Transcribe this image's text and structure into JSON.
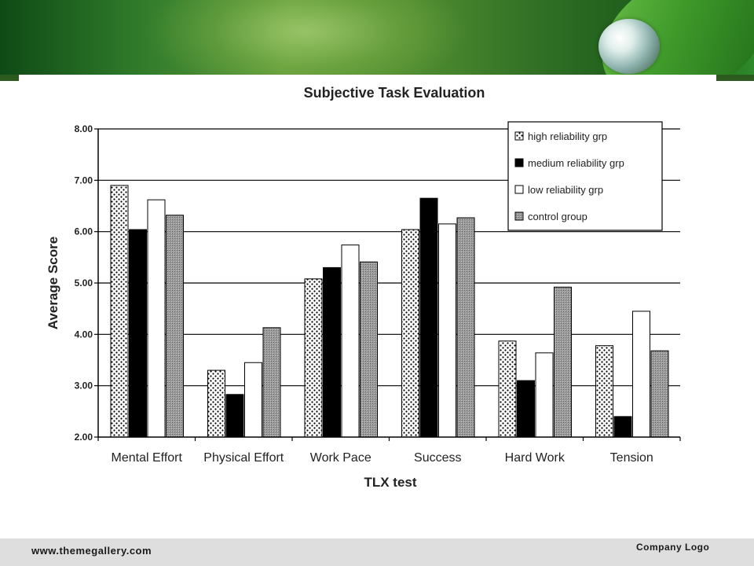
{
  "footer": {
    "url": "www.themegallery.com",
    "logo": "Company Logo"
  },
  "chart_data": {
    "type": "bar",
    "title": "Subjective Task Evaluation",
    "xlabel": "TLX test",
    "ylabel": "Average Score",
    "ylim": [
      2,
      8
    ],
    "yticks": [
      "2.00",
      "3.00",
      "4.00",
      "5.00",
      "6.00",
      "7.00",
      "8.00"
    ],
    "categories": [
      "Mental Effort",
      "Physical Effort",
      "Work Pace",
      "Success",
      "Hard Work",
      "Tension"
    ],
    "series": [
      {
        "name": "high reliability grp",
        "fill": "dots",
        "values": [
          6.9,
          3.3,
          5.08,
          6.04,
          3.87,
          3.78
        ]
      },
      {
        "name": "medium reliability grp",
        "fill": "#000000",
        "values": [
          6.04,
          2.83,
          5.3,
          6.65,
          3.1,
          2.4
        ]
      },
      {
        "name": "low reliability grp",
        "fill": "#ffffff",
        "values": [
          6.62,
          3.45,
          5.74,
          6.15,
          3.64,
          4.45
        ]
      },
      {
        "name": "control group",
        "fill": "gray-pattern",
        "values": [
          6.32,
          4.13,
          5.41,
          6.27,
          4.92,
          3.68
        ]
      }
    ],
    "grid": true,
    "legend": "top-right"
  }
}
